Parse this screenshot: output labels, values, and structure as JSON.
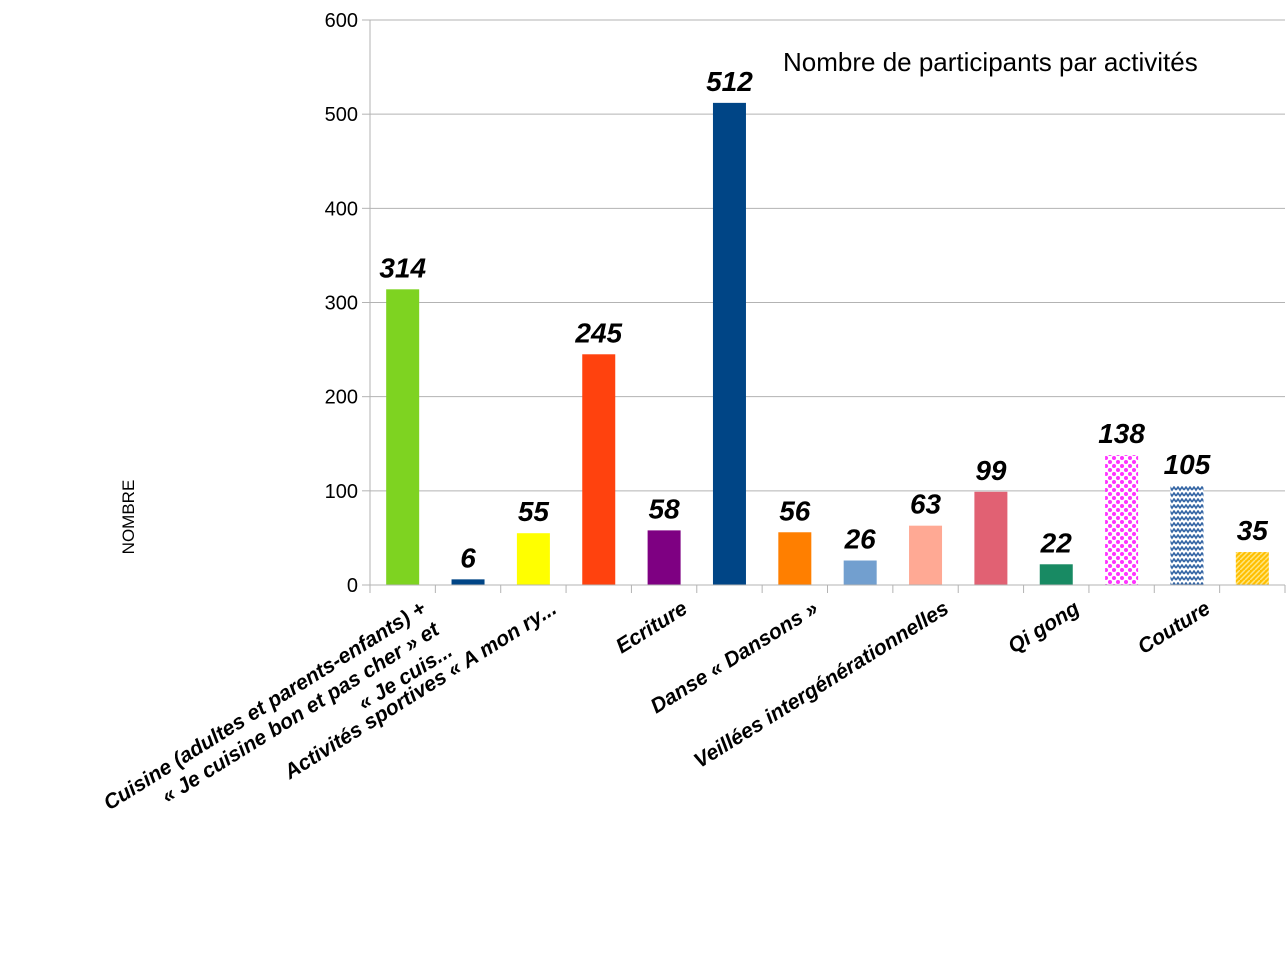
{
  "chart_data": {
    "type": "bar",
    "title": "Nombre de participants par activités",
    "ylabel": "NOMBRE",
    "xlabel": "",
    "ylim": [
      0,
      600
    ],
    "yticks": [
      0,
      100,
      200,
      300,
      400,
      500,
      600
    ],
    "grid": true,
    "legend": "none",
    "values": [
      314,
      6,
      55,
      245,
      58,
      512,
      56,
      26,
      63,
      99,
      22,
      138,
      105,
      35
    ],
    "bar_labels": [
      "314",
      "6",
      "55",
      "245",
      "58",
      "512",
      "56",
      "26",
      "63",
      "99",
      "22",
      "138",
      "105",
      "35"
    ],
    "colors": [
      "#7ed321",
      "#004586",
      "#ffff00",
      "#ff420e",
      "#7e0082",
      "#004586",
      "#ff7f00",
      "#729fcf",
      "#ffa994",
      "#e16173",
      "#188a63",
      "#ff66ff",
      "#3465a4",
      "#ffbf00"
    ],
    "patterns": [
      "solid",
      "solid",
      "solid",
      "solid",
      "solid",
      "solid",
      "solid",
      "solid",
      "solid",
      "solid",
      "solid",
      "dots",
      "zigzag",
      "weave"
    ],
    "category_labels": [
      {
        "bar_index": 0,
        "lines": [
          "Cuisine (adultes et parents-enfants) +",
          "« Je cuisine bon et pas cher » et",
          "« Je cuis..."
        ]
      },
      {
        "bar_index": 2,
        "lines": [
          "Activités sportives « A mon ry..."
        ]
      },
      {
        "bar_index": 4,
        "lines": [
          "Ecriture"
        ]
      },
      {
        "bar_index": 6,
        "lines": [
          "Danse « Dansons »"
        ]
      },
      {
        "bar_index": 8,
        "lines": [
          "Veillées intergénérationnelles"
        ]
      },
      {
        "bar_index": 10,
        "lines": [
          "Qi gong"
        ]
      },
      {
        "bar_index": 12,
        "lines": [
          "Couture"
        ]
      }
    ]
  }
}
